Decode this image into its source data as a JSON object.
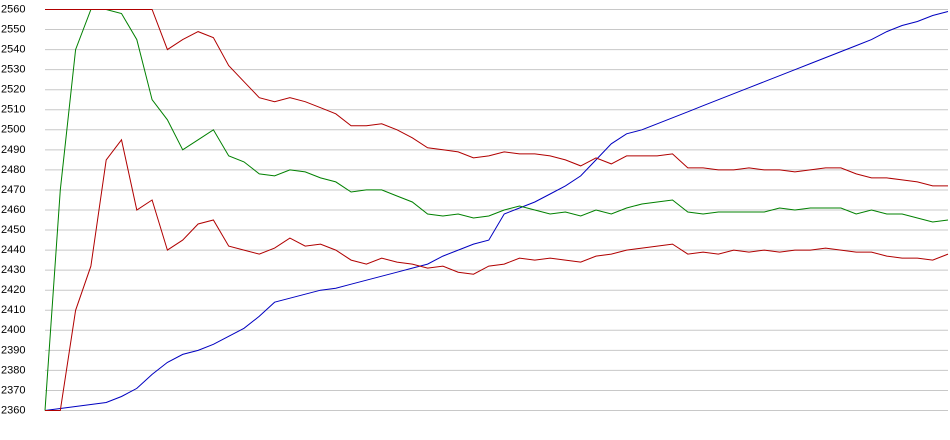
{
  "chart_data": {
    "type": "line",
    "categories": [
      null,
      null,
      null,
      null,
      null,
      null,
      null,
      null,
      null,
      null,
      null,
      null,
      null,
      null,
      null,
      null,
      null,
      null,
      null,
      null,
      null,
      null,
      null,
      null,
      null,
      null,
      null,
      null,
      null,
      null,
      null,
      null,
      null,
      null,
      null,
      null,
      null,
      null,
      null,
      null,
      null,
      null,
      null,
      null,
      null,
      null,
      null,
      null,
      null,
      null,
      null,
      null,
      null,
      null,
      null,
      null,
      null,
      null,
      null,
      null
    ],
    "series": [
      {
        "color": "#0000c0",
        "values": [
          2360,
          2361,
          2362,
          2363,
          2364,
          2367,
          2371,
          2378,
          2384,
          2388,
          2390,
          2393,
          2397,
          2401,
          2407,
          2414,
          2416,
          2418,
          2420,
          2421,
          2423,
          2425,
          2427,
          2429,
          2431,
          2433,
          2437,
          2440,
          2443,
          2445,
          2458,
          2461,
          2464,
          2468,
          2472,
          2477,
          2485,
          2493,
          2498,
          2500,
          2503,
          2506,
          2509,
          2512,
          2515,
          2518,
          2521,
          2524,
          2527,
          2530,
          2533,
          2536,
          2539,
          2542,
          2545,
          2549,
          2552,
          2554,
          2557,
          2559
        ]
      },
      {
        "color": "#008000",
        "values": [
          2360,
          2470,
          2540,
          2560,
          2560,
          2558,
          2545,
          2515,
          2505,
          2490,
          2495,
          2500,
          2487,
          2484,
          2478,
          2477,
          2480,
          2479,
          2476,
          2474,
          2469,
          2470,
          2470,
          2467,
          2464,
          2458,
          2457,
          2458,
          2456,
          2457,
          2460,
          2462,
          2460,
          2458,
          2459,
          2457,
          2460,
          2458,
          2461,
          2463,
          2464,
          2465,
          2459,
          2458,
          2459,
          2459,
          2459,
          2459,
          2461,
          2460,
          2461,
          2461,
          2461,
          2458,
          2460,
          2458,
          2458,
          2456,
          2454,
          2455
        ]
      },
      {
        "color": "#b00000",
        "values": [
          2560,
          2560,
          2560,
          2560,
          2560,
          2560,
          2560,
          2560,
          2540,
          2545,
          2549,
          2546,
          2532,
          2524,
          2516,
          2514,
          2516,
          2514,
          2511,
          2508,
          2502,
          2502,
          2503,
          2500,
          2496,
          2491,
          2490,
          2489,
          2486,
          2487,
          2489,
          2488,
          2488,
          2487,
          2485,
          2482,
          2486,
          2483,
          2487,
          2487,
          2487,
          2488,
          2481,
          2481,
          2480,
          2480,
          2481,
          2480,
          2480,
          2479,
          2480,
          2481,
          2481,
          2478,
          2476,
          2476,
          2475,
          2474,
          2472,
          2472
        ]
      },
      {
        "color": "#b00000",
        "values": [
          2360,
          2360,
          2410,
          2432,
          2485,
          2495,
          2460,
          2465,
          2440,
          2445,
          2453,
          2455,
          2442,
          2440,
          2438,
          2441,
          2446,
          2442,
          2443,
          2440,
          2435,
          2433,
          2436,
          2434,
          2433,
          2431,
          2432,
          2429,
          2428,
          2432,
          2433,
          2436,
          2435,
          2436,
          2435,
          2434,
          2437,
          2438,
          2440,
          2441,
          2442,
          2443,
          2438,
          2439,
          2438,
          2440,
          2439,
          2440,
          2439,
          2440,
          2440,
          2441,
          2440,
          2439,
          2439,
          2437,
          2436,
          2436,
          2435,
          2438
        ]
      }
    ],
    "ylim": [
      2360,
      2560
    ],
    "yticks": [
      2360,
      2370,
      2380,
      2390,
      2400,
      2410,
      2420,
      2430,
      2440,
      2450,
      2460,
      2470,
      2480,
      2490,
      2500,
      2510,
      2520,
      2530,
      2540,
      2550,
      2560
    ],
    "grid": true
  }
}
